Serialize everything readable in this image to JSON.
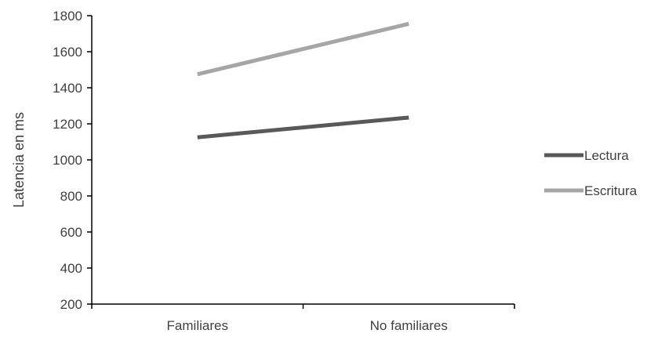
{
  "chart_data": {
    "type": "line",
    "categories": [
      "Familiares",
      "No familiares"
    ],
    "series": [
      {
        "name": "Lectura",
        "values": [
          1125,
          1235
        ],
        "color": "#595959"
      },
      {
        "name": "Escritura",
        "values": [
          1475,
          1755
        ],
        "color": "#a6a6a6"
      }
    ],
    "xlabel": "",
    "ylabel": "Latencia en ms",
    "ylim": [
      200,
      1800
    ],
    "yticks": [
      200,
      400,
      600,
      800,
      1000,
      1200,
      1400,
      1600,
      1800
    ],
    "grid": false,
    "legend": "right"
  }
}
